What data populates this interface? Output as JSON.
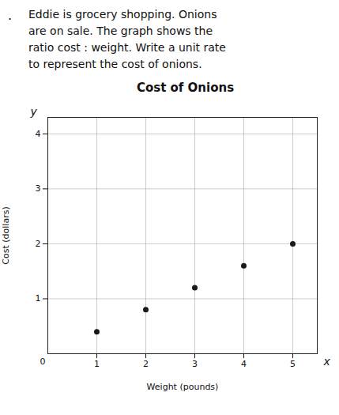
{
  "chart_data": {
    "type": "scatter",
    "title": "Cost of Onions",
    "x_label": "Weight (pounds)",
    "y_label": "Cost (dollars)",
    "annotations": [
      ".",
      "Eddie is grocery shopping. Onions",
      "are on sale. The graph shows the",
      "ratio cost : weight. Write a unit rate",
      "to represent the cost of onions.",
      "y",
      "x",
      "0"
    ],
    "x": [
      1,
      2,
      3,
      4,
      5
    ],
    "values": [
      0.4,
      0.8,
      1.2,
      1.6,
      2.0
    ],
    "color": "#1a1a1a",
    "xlim": [
      0,
      5.5
    ],
    "ylim": [
      0,
      4.3
    ],
    "xticks": [
      1,
      2,
      3,
      4,
      5
    ],
    "yticks": [
      1,
      2,
      3,
      4
    ],
    "grid": true
  }
}
